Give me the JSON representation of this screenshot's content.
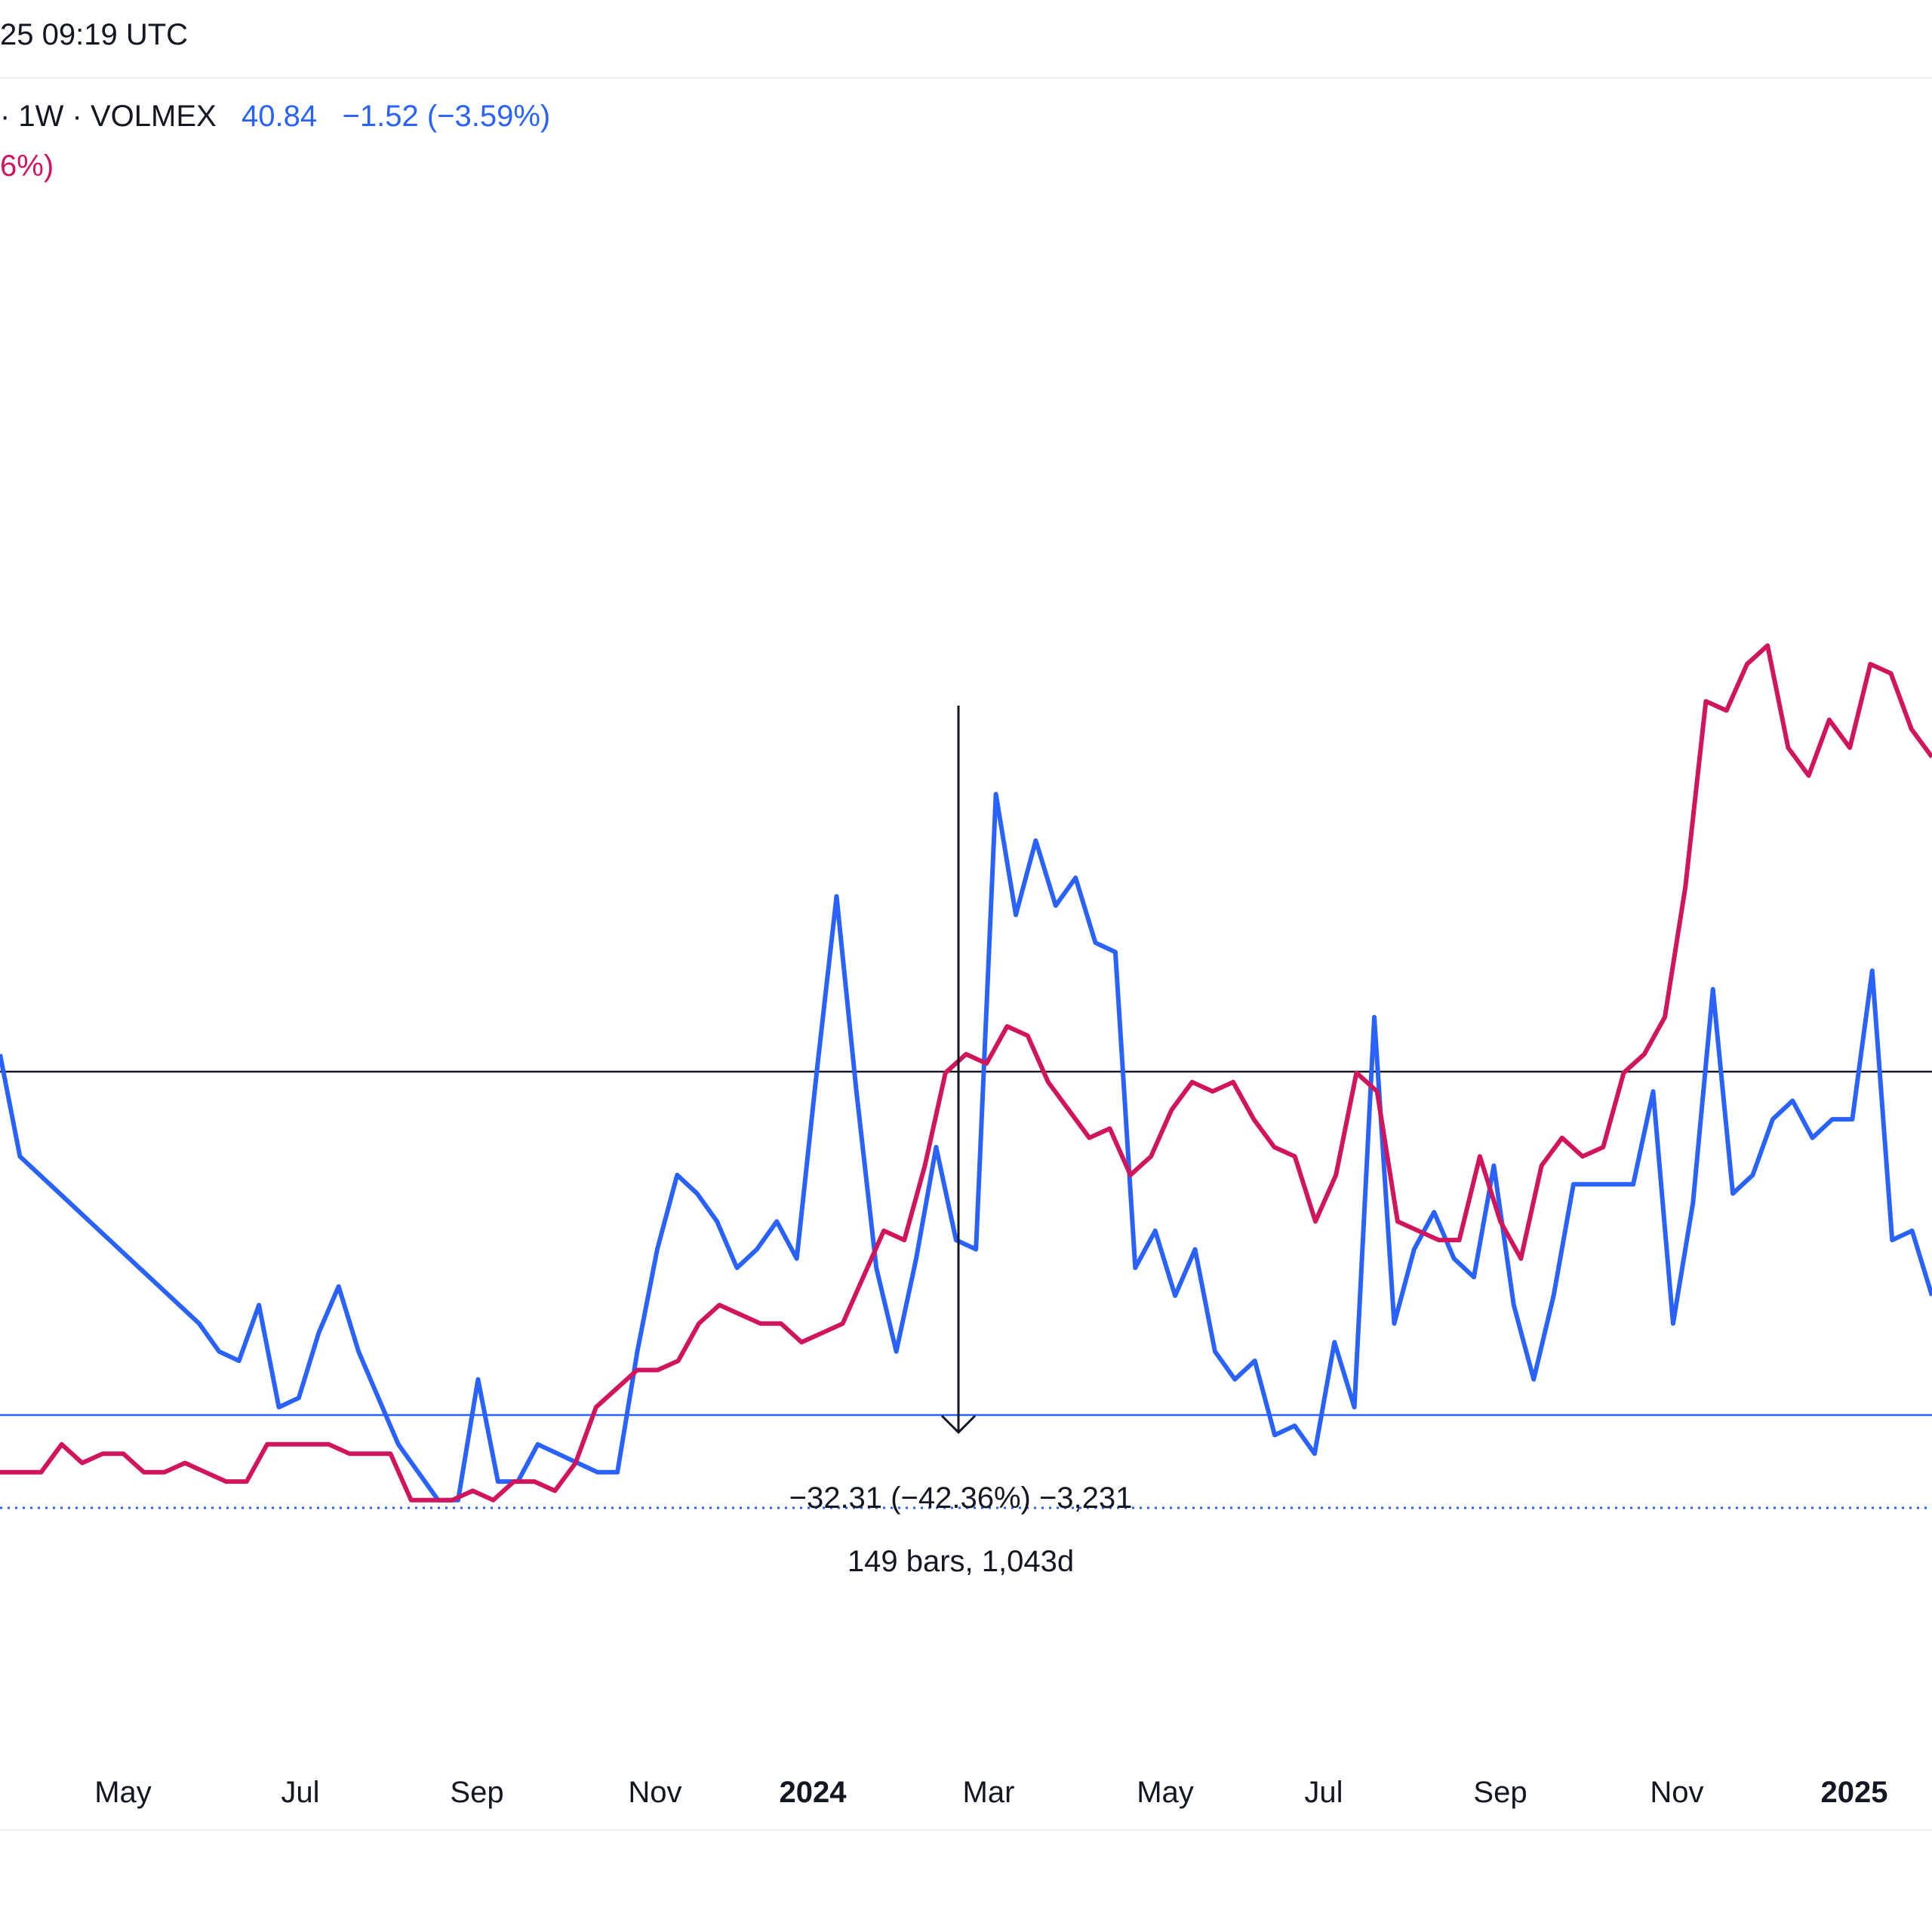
{
  "header": {
    "time_fragment": "25 09:19 UTC"
  },
  "legend": {
    "prefix_fragment": "· 1W · VOLMEX",
    "value": "40.84",
    "change": "−1.52 (−3.59%)",
    "second_fragment": "6%)"
  },
  "colors": {
    "blue_series": "#2962ff",
    "red_series": "#d1155c",
    "text": "#131722",
    "crosshair": "#131722"
  },
  "chart_data": {
    "type": "line",
    "x_tick_labels": [
      "May",
      "Jul",
      "Sep",
      "Nov",
      "2024",
      "Mar",
      "May",
      "Jul",
      "Sep",
      "Nov",
      "2025"
    ],
    "series": [
      {
        "color": "#2962ff",
        "values": [
          62,
          51,
          49,
          47,
          45,
          43,
          41,
          39,
          37,
          35,
          33,
          30,
          29,
          35,
          24,
          25,
          32,
          37,
          30,
          25,
          20,
          17,
          14,
          14,
          27,
          16,
          16,
          20,
          19,
          18,
          17,
          17,
          30,
          41,
          49,
          47,
          44,
          39,
          41,
          44,
          40,
          60,
          79,
          58,
          39,
          30,
          40,
          52,
          42,
          41,
          90,
          77,
          85,
          78,
          81,
          74,
          73,
          39,
          43,
          36,
          41,
          30,
          27,
          29,
          21,
          22,
          19,
          31,
          24,
          66,
          33,
          41,
          45,
          40,
          38,
          50,
          35,
          27,
          36,
          48,
          48,
          48,
          48,
          58,
          33,
          46,
          69,
          47,
          49,
          55,
          57,
          53,
          55,
          55,
          71,
          42,
          43,
          36
        ]
      },
      {
        "color": "#d1155c",
        "values": [
          17,
          17,
          17,
          20,
          18,
          19,
          19,
          17,
          17,
          18,
          17,
          16,
          16,
          20,
          20,
          20,
          20,
          19,
          19,
          19,
          14,
          14,
          14,
          15,
          14,
          16,
          16,
          15,
          18,
          24,
          26,
          28,
          28,
          29,
          33,
          35,
          34,
          33,
          33,
          31,
          32,
          33,
          38,
          43,
          42,
          50,
          60,
          62,
          61,
          65,
          64,
          59,
          56,
          53,
          54,
          49,
          51,
          56,
          59,
          58,
          59,
          55,
          52,
          51,
          44,
          49,
          60,
          58,
          44,
          43,
          42,
          42,
          51,
          44,
          40,
          50,
          53,
          51,
          52,
          60,
          62,
          66,
          80,
          100,
          99,
          104,
          106,
          95,
          92,
          98,
          95,
          104,
          103,
          97,
          94
        ]
      }
    ],
    "horizontal_levels": [
      {
        "name": "crosshair",
        "color": "#131722"
      },
      {
        "name": "level",
        "color": "#2962ff"
      },
      {
        "name": "dotted",
        "color": "#2962ff"
      }
    ],
    "measure": {
      "line1": "−32.31 (−42.36%) −3,231",
      "line2": "149 bars, 1,043d"
    },
    "grid": false
  }
}
